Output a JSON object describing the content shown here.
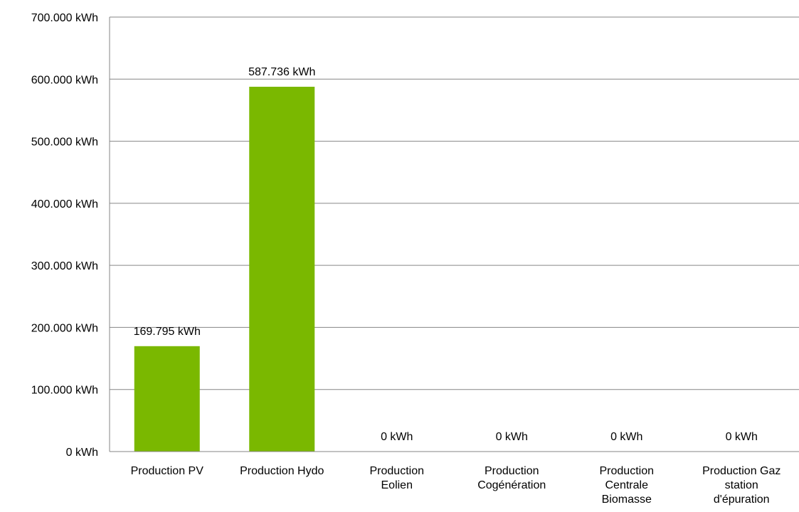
{
  "chart_data": {
    "type": "bar",
    "categories": [
      [
        "Production PV"
      ],
      [
        "Production Hydo"
      ],
      [
        "Production",
        "Eolien"
      ],
      [
        "Production",
        "Cogénération"
      ],
      [
        "Production",
        "Centrale",
        "Biomasse"
      ],
      [
        "Production Gaz",
        "station",
        "d'épuration"
      ]
    ],
    "values": [
      169795,
      587736,
      0,
      0,
      0,
      0
    ],
    "data_labels": [
      "169.795 kWh",
      "587.736 kWh",
      "0 kWh",
      "0 kWh",
      "0 kWh",
      "0 kWh"
    ],
    "yticks": [
      0,
      100000,
      200000,
      300000,
      400000,
      500000,
      600000,
      700000
    ],
    "ytick_labels": [
      "0 kWh",
      "100.000 kWh",
      "200.000 kWh",
      "300.000 kWh",
      "400.000 kWh",
      "500.000 kWh",
      "600.000 kWh",
      "700.000 kWh"
    ],
    "ylim": [
      0,
      700000
    ],
    "grid": true,
    "legend": "none",
    "bar_color": "#7ab800",
    "grid_color": "#868686"
  }
}
